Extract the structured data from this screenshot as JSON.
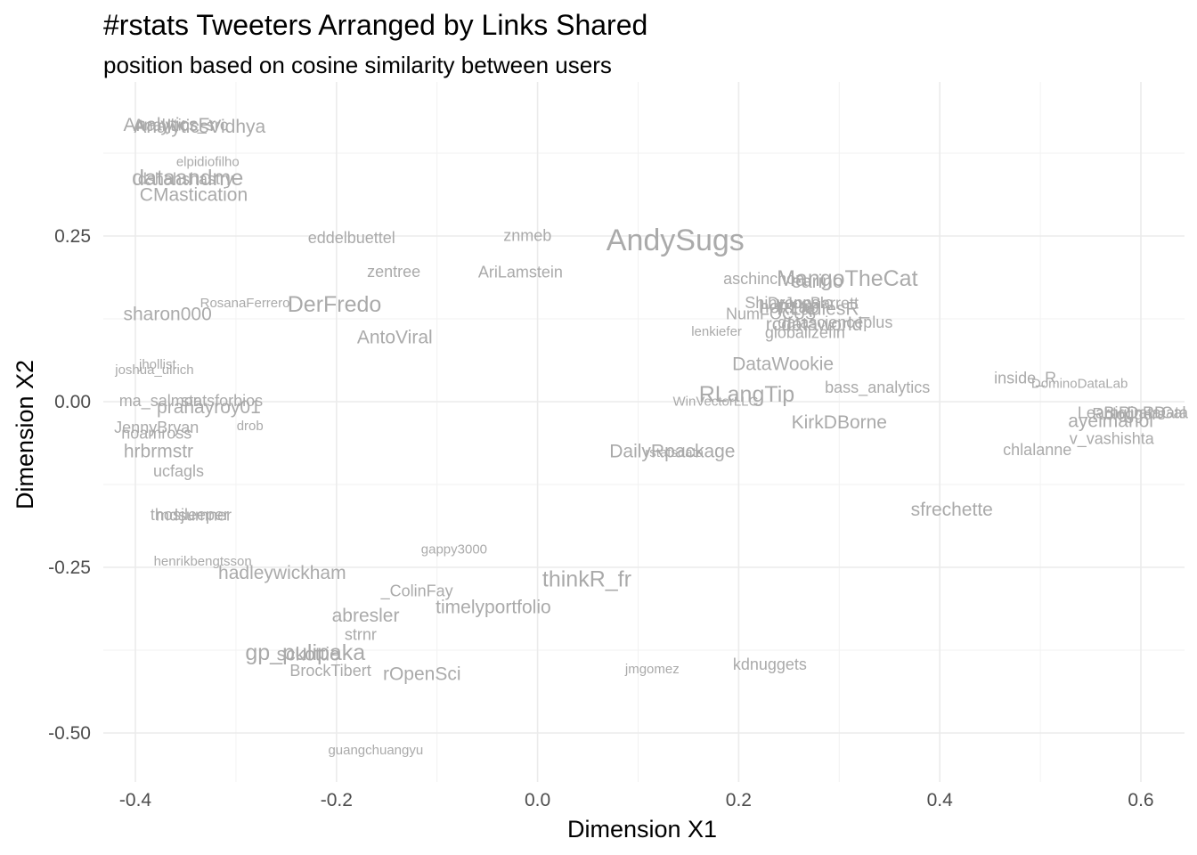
{
  "chart_data": {
    "type": "scatter",
    "title": "#rstats Tweeters Arranged by Links Shared",
    "subtitle": "position based on cosine similarity between users",
    "xlabel": "Dimension X1",
    "ylabel": "Dimension X2",
    "xlim": [
      -0.43,
      0.63
    ],
    "ylim": [
      -0.565,
      0.475
    ],
    "x_ticks": [
      -0.4,
      -0.2,
      0.0,
      0.2,
      0.4,
      0.6
    ],
    "x_tick_labels": [
      "-0.4",
      "-0.2",
      "0.0",
      "0.2",
      "0.4",
      "0.6"
    ],
    "y_ticks": [
      -0.5,
      -0.25,
      0.0,
      0.25
    ],
    "y_tick_labels": [
      "-0.50",
      "-0.25",
      "0.00",
      "0.25"
    ],
    "grid": true,
    "legend": "none",
    "text_color": "#aaaaaa",
    "points": [
      {
        "label": "AnalyticsFr",
        "x": -0.366,
        "y": 0.419,
        "size": 2
      },
      {
        "label": "AnalyticsVidhya",
        "x": -0.336,
        "y": 0.416,
        "size": 2
      },
      {
        "label": "Analytics_src",
        "x": -0.355,
        "y": 0.418,
        "size": 1
      },
      {
        "label": "elpidiofilho",
        "x": -0.328,
        "y": 0.363,
        "size": 0
      },
      {
        "label": "dataandme",
        "x": -0.348,
        "y": 0.339,
        "size": 3
      },
      {
        "label": "dshahshastry",
        "x": -0.35,
        "y": 0.337,
        "size": 1
      },
      {
        "label": "CMastication",
        "x": -0.342,
        "y": 0.313,
        "size": 2
      },
      {
        "label": "eddelbuettel",
        "x": -0.185,
        "y": 0.248,
        "size": 1
      },
      {
        "label": "znmeb",
        "x": -0.01,
        "y": 0.251,
        "size": 1
      },
      {
        "label": "AndySugs",
        "x": 0.137,
        "y": 0.245,
        "size": 4
      },
      {
        "label": "zentree",
        "x": -0.143,
        "y": 0.197,
        "size": 1
      },
      {
        "label": "AriLamstein",
        "x": -0.017,
        "y": 0.196,
        "size": 1
      },
      {
        "label": "aschinchon",
        "x": 0.225,
        "y": 0.186,
        "size": 1
      },
      {
        "label": "earino",
        "x": 0.278,
        "y": 0.182,
        "size": 2
      },
      {
        "label": "MangoTheCat",
        "x": 0.308,
        "y": 0.187,
        "size": 3
      },
      {
        "label": "RosanaFerrero",
        "x": -0.291,
        "y": 0.15,
        "size": 0
      },
      {
        "label": "DerFredo",
        "x": -0.202,
        "y": 0.148,
        "size": 3
      },
      {
        "label": "ShinyappsIo",
        "x": 0.25,
        "y": 0.15,
        "size": 1
      },
      {
        "label": "DrJoeBarrett",
        "x": 0.274,
        "y": 0.149,
        "size": 1
      },
      {
        "label": "hoitzap",
        "x": 0.25,
        "y": 0.144,
        "size": 2
      },
      {
        "label": "RLadiesR_",
        "x": 0.284,
        "y": 0.141,
        "size": 2
      },
      {
        "label": "NumFOCUS",
        "x": 0.232,
        "y": 0.133,
        "size": 1
      },
      {
        "label": "sharon000",
        "x": -0.368,
        "y": 0.133,
        "size": 2
      },
      {
        "label": "datascienceplus",
        "x": 0.296,
        "y": 0.12,
        "size": 1
      },
      {
        "label": "rcdataworld",
        "x": 0.275,
        "y": 0.118,
        "size": 2
      },
      {
        "label": "lenkiefer",
        "x": 0.178,
        "y": 0.107,
        "size": 0
      },
      {
        "label": "globalizefin",
        "x": 0.266,
        "y": 0.105,
        "size": 1
      },
      {
        "label": "AntoViral",
        "x": -0.142,
        "y": 0.098,
        "size": 2
      },
      {
        "label": "jhollist",
        "x": -0.378,
        "y": 0.057,
        "size": 0
      },
      {
        "label": "joshua_ulrich",
        "x": -0.381,
        "y": 0.049,
        "size": 0
      },
      {
        "label": "DataWookie",
        "x": 0.244,
        "y": 0.058,
        "size": 2
      },
      {
        "label": "inside_R",
        "x": 0.485,
        "y": 0.036,
        "size": 1
      },
      {
        "label": "DominoDataLab",
        "x": 0.539,
        "y": 0.028,
        "size": 0
      },
      {
        "label": "bass_analytics",
        "x": 0.338,
        "y": 0.022,
        "size": 1
      },
      {
        "label": "RLangTip",
        "x": 0.208,
        "y": 0.012,
        "size": 3
      },
      {
        "label": "WinVectorLLC",
        "x": 0.177,
        "y": 0.001,
        "size": 0
      },
      {
        "label": "ma_salmon",
        "x": -0.375,
        "y": 0.002,
        "size": 1
      },
      {
        "label": "statsforbios",
        "x": -0.314,
        "y": 0.002,
        "size": 1
      },
      {
        "label": "pranayroy01",
        "x": -0.327,
        "y": -0.007,
        "size": 2
      },
      {
        "label": "LearnRinRData",
        "x": 0.592,
        "y": -0.016,
        "size": 1
      },
      {
        "label": "BigDataGal",
        "x": 0.604,
        "y": -0.016,
        "size": 1
      },
      {
        "label": "Rbloggers",
        "x": 0.588,
        "y": -0.018,
        "size": 1
      },
      {
        "label": "ayeimanol",
        "x": 0.57,
        "y": -0.028,
        "size": 2
      },
      {
        "label": "KirkDBorne",
        "x": 0.3,
        "y": -0.03,
        "size": 2
      },
      {
        "label": "JennyBryan",
        "x": -0.379,
        "y": -0.038,
        "size": 1
      },
      {
        "label": "drob",
        "x": -0.286,
        "y": -0.036,
        "size": 0
      },
      {
        "label": "noamross",
        "x": -0.379,
        "y": -0.047,
        "size": 1
      },
      {
        "label": "v_vashishta",
        "x": 0.571,
        "y": -0.055,
        "size": 1
      },
      {
        "label": "chlalanne",
        "x": 0.497,
        "y": -0.072,
        "size": 1
      },
      {
        "label": "hrbrmstr",
        "x": -0.377,
        "y": -0.074,
        "size": 2
      },
      {
        "label": "DailyRpackage",
        "x": 0.134,
        "y": -0.074,
        "size": 2
      },
      {
        "label": "rstatsdata",
        "x": 0.136,
        "y": -0.076,
        "size": 0
      },
      {
        "label": "ucfagls",
        "x": -0.357,
        "y": -0.104,
        "size": 1
      },
      {
        "label": "sfrechette",
        "x": 0.412,
        "y": -0.162,
        "size": 2
      },
      {
        "label": "thosjleeper",
        "x": -0.346,
        "y": -0.17,
        "size": 1
      },
      {
        "label": "mdsumner",
        "x": -0.342,
        "y": -0.171,
        "size": 1
      },
      {
        "label": "gappy3000",
        "x": -0.083,
        "y": -0.222,
        "size": 0
      },
      {
        "label": "henrikbengtsson",
        "x": -0.333,
        "y": -0.24,
        "size": 0
      },
      {
        "label": "hadleywickham",
        "x": -0.254,
        "y": -0.257,
        "size": 2
      },
      {
        "label": "thinkR_fr",
        "x": 0.049,
        "y": -0.267,
        "size": 3
      },
      {
        "label": "_ColinFay",
        "x": -0.12,
        "y": -0.285,
        "size": 1
      },
      {
        "label": "timelyportfolio",
        "x": -0.044,
        "y": -0.309,
        "size": 2
      },
      {
        "label": "abresler",
        "x": -0.171,
        "y": -0.322,
        "size": 2
      },
      {
        "label": "strnr",
        "x": -0.176,
        "y": -0.351,
        "size": 1
      },
      {
        "label": "gp_pulipaka",
        "x": -0.231,
        "y": -0.378,
        "size": 3
      },
      {
        "label": "sckottie",
        "x": -0.228,
        "y": -0.38,
        "size": 2
      },
      {
        "label": "kdnuggets",
        "x": 0.231,
        "y": -0.396,
        "size": 1
      },
      {
        "label": "jmgomez",
        "x": 0.114,
        "y": -0.403,
        "size": 0
      },
      {
        "label": "BrockTibert",
        "x": -0.206,
        "y": -0.405,
        "size": 1
      },
      {
        "label": "rOpenSci",
        "x": -0.115,
        "y": -0.41,
        "size": 2
      },
      {
        "label": "guangchuangyu",
        "x": -0.161,
        "y": -0.525,
        "size": 0
      }
    ]
  }
}
